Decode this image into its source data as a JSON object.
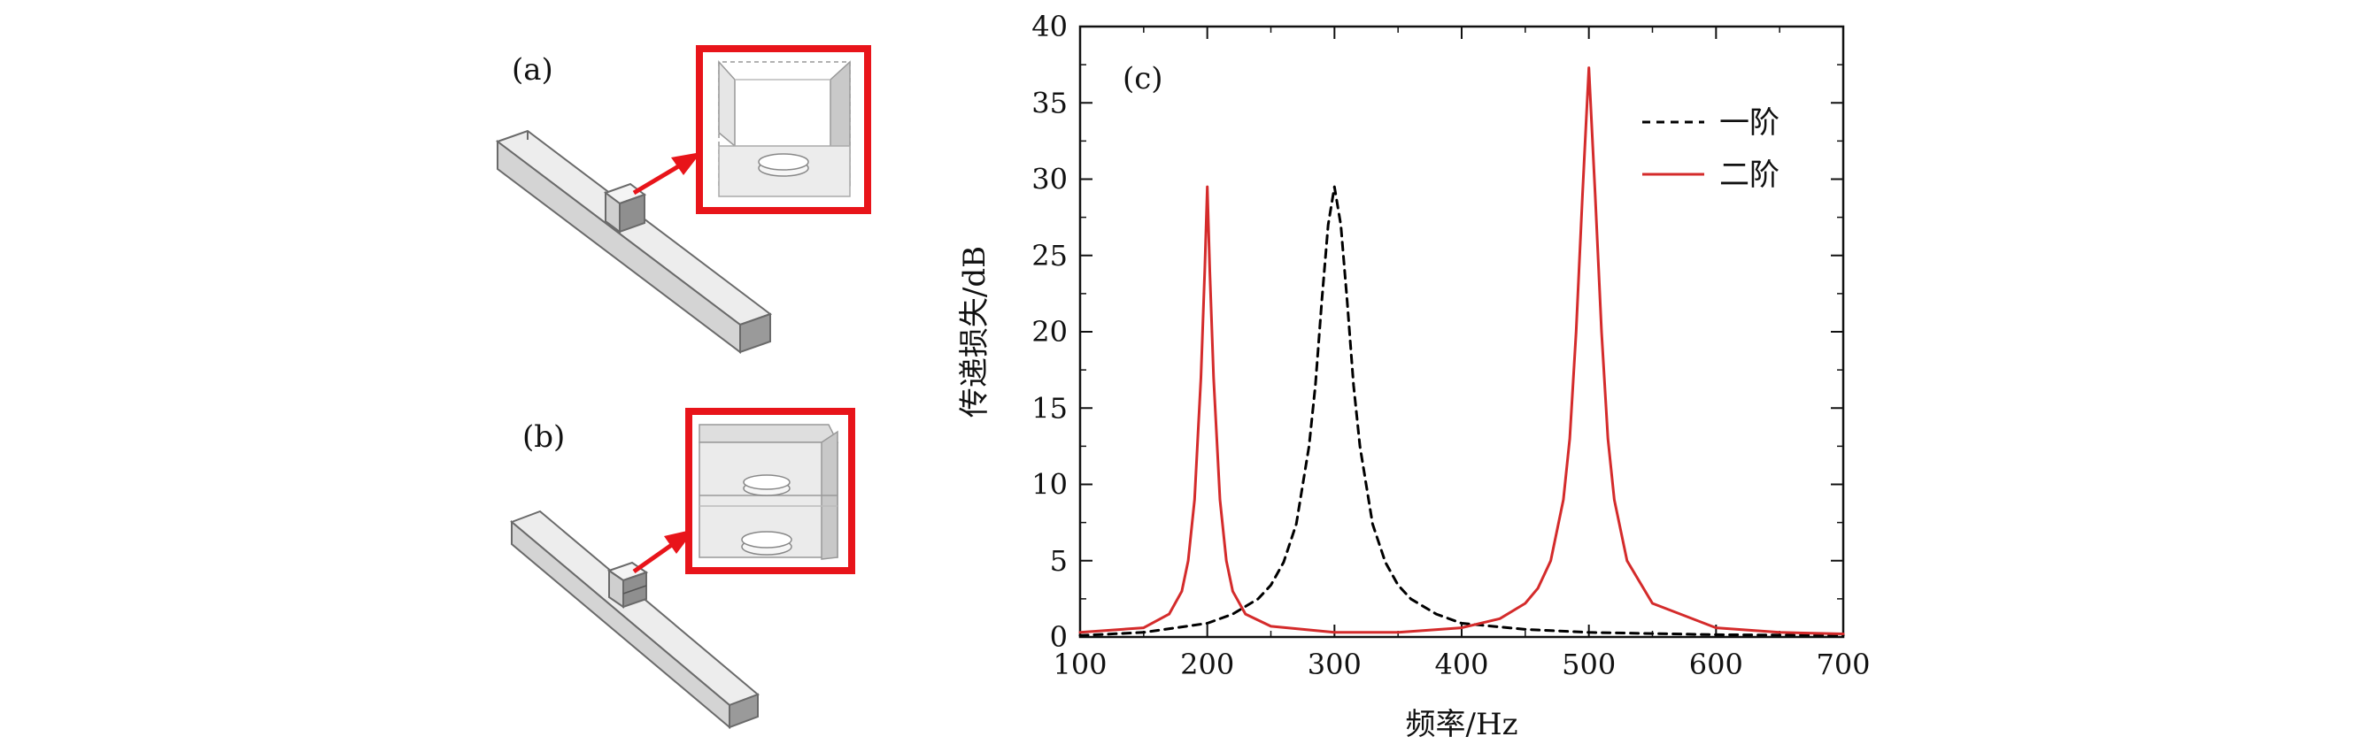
{
  "panels": {
    "a_label": "(a)",
    "b_label": "(b)",
    "c_label": "(c)"
  },
  "colors": {
    "axis": "#111111",
    "series_first": "#000000",
    "series_second": "#d42b2b",
    "highlight_box": "#e8141a",
    "beam_fill": "#d8d8d8",
    "beam_edge": "#6a6a6a"
  },
  "chart_data": {
    "type": "line",
    "title": "",
    "xlabel": "频率/Hz",
    "ylabel": "传递损失/dB",
    "xlim": [
      100,
      700
    ],
    "ylim": [
      0,
      40
    ],
    "x_ticks": [
      100,
      200,
      300,
      400,
      500,
      600,
      700
    ],
    "y_ticks": [
      0,
      5,
      10,
      15,
      20,
      25,
      30,
      35,
      40
    ],
    "grid": false,
    "legend_position": "top-right",
    "series": [
      {
        "name": "一阶",
        "style": "dashed",
        "color": "#000000",
        "x": [
          100,
          150,
          200,
          220,
          240,
          250,
          260,
          270,
          280,
          285,
          290,
          295,
          300,
          305,
          310,
          315,
          320,
          330,
          340,
          350,
          360,
          380,
          400,
          450,
          500,
          600,
          700
        ],
        "y": [
          0.1,
          0.3,
          0.9,
          1.5,
          2.5,
          3.4,
          4.9,
          7.4,
          12.5,
          16.5,
          22,
          27,
          29.5,
          27,
          22,
          16.5,
          12.5,
          7.4,
          4.9,
          3.4,
          2.5,
          1.5,
          0.9,
          0.5,
          0.3,
          0.15,
          0.1
        ]
      },
      {
        "name": "二阶",
        "style": "solid",
        "color": "#d42b2b",
        "x": [
          100,
          150,
          170,
          180,
          185,
          190,
          195,
          198,
          200,
          202,
          205,
          210,
          215,
          220,
          230,
          250,
          300,
          350,
          400,
          430,
          450,
          460,
          470,
          480,
          485,
          490,
          495,
          498,
          500,
          502,
          505,
          510,
          515,
          520,
          530,
          550,
          600,
          650,
          700
        ],
        "y": [
          0.3,
          0.6,
          1.5,
          3,
          5,
          9,
          17,
          24,
          29.5,
          24,
          17,
          9,
          5,
          3,
          1.5,
          0.7,
          0.3,
          0.3,
          0.6,
          1.2,
          2.2,
          3.2,
          5,
          9,
          13,
          20,
          29,
          34,
          37.3,
          34,
          29,
          20,
          13,
          9,
          5,
          2.2,
          0.6,
          0.3,
          0.2
        ]
      }
    ]
  }
}
